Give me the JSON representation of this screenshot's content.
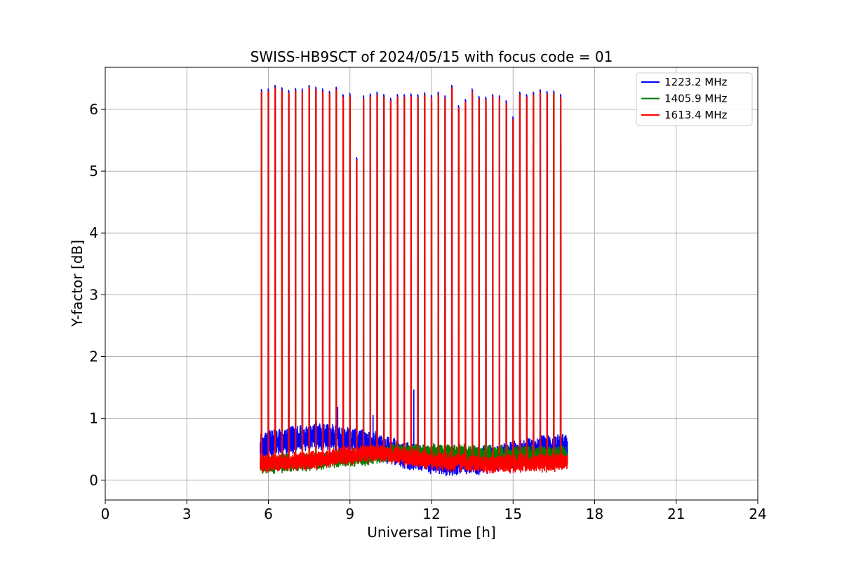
{
  "chart_data": {
    "type": "line",
    "title": "SWISS-HB9SCT of 2024/05/15 with focus code = 01",
    "xlabel": "Universal Time [h]",
    "ylabel": "Y-factor [dB]",
    "xlim": [
      0,
      24
    ],
    "ylim": [
      -0.32,
      6.68
    ],
    "xticks": [
      0,
      3,
      6,
      9,
      12,
      15,
      18,
      21,
      24
    ],
    "yticks": [
      0,
      1,
      2,
      3,
      4,
      5,
      6
    ],
    "grid": true,
    "legend_position": "top-right",
    "time_range": [
      5.7,
      17.0
    ],
    "calibration_peaks": [
      {
        "t": 5.75,
        "v": 6.28
      },
      {
        "t": 6.0,
        "v": 6.29
      },
      {
        "t": 6.25,
        "v": 6.35
      },
      {
        "t": 6.5,
        "v": 6.31
      },
      {
        "t": 6.75,
        "v": 6.27
      },
      {
        "t": 7.0,
        "v": 6.3
      },
      {
        "t": 7.25,
        "v": 6.29
      },
      {
        "t": 7.5,
        "v": 6.35
      },
      {
        "t": 7.75,
        "v": 6.32
      },
      {
        "t": 8.0,
        "v": 6.29
      },
      {
        "t": 8.25,
        "v": 6.25
      },
      {
        "t": 8.5,
        "v": 6.32
      },
      {
        "t": 8.75,
        "v": 6.2
      },
      {
        "t": 9.0,
        "v": 6.22
      },
      {
        "t": 9.25,
        "v": 5.18
      },
      {
        "t": 9.5,
        "v": 6.18
      },
      {
        "t": 9.75,
        "v": 6.21
      },
      {
        "t": 10.0,
        "v": 6.24
      },
      {
        "t": 10.25,
        "v": 6.2
      },
      {
        "t": 10.5,
        "v": 6.14
      },
      {
        "t": 10.75,
        "v": 6.2
      },
      {
        "t": 11.0,
        "v": 6.2
      },
      {
        "t": 11.25,
        "v": 6.21
      },
      {
        "t": 11.5,
        "v": 6.2
      },
      {
        "t": 11.75,
        "v": 6.23
      },
      {
        "t": 12.0,
        "v": 6.19
      },
      {
        "t": 12.25,
        "v": 6.24
      },
      {
        "t": 12.5,
        "v": 6.18
      },
      {
        "t": 12.75,
        "v": 6.35
      },
      {
        "t": 13.0,
        "v": 6.02
      },
      {
        "t": 13.25,
        "v": 6.12
      },
      {
        "t": 13.5,
        "v": 6.29
      },
      {
        "t": 13.75,
        "v": 6.17
      },
      {
        "t": 14.0,
        "v": 6.16
      },
      {
        "t": 14.25,
        "v": 6.2
      },
      {
        "t": 14.5,
        "v": 6.18
      },
      {
        "t": 14.75,
        "v": 6.1
      },
      {
        "t": 15.0,
        "v": 5.84
      },
      {
        "t": 15.25,
        "v": 6.24
      },
      {
        "t": 15.5,
        "v": 6.2
      },
      {
        "t": 15.75,
        "v": 6.24
      },
      {
        "t": 16.0,
        "v": 6.28
      },
      {
        "t": 16.25,
        "v": 6.25
      },
      {
        "t": 16.5,
        "v": 6.26
      },
      {
        "t": 16.75,
        "v": 6.2
      }
    ],
    "series": [
      {
        "name": "1223.2 MHz",
        "color": "#0000ff",
        "baseline": [
          {
            "t": 5.7,
            "level": 0.55
          },
          {
            "t": 7.5,
            "level": 0.72
          },
          {
            "t": 8.6,
            "level": 0.68
          },
          {
            "t": 10.0,
            "level": 0.55
          },
          {
            "t": 11.0,
            "level": 0.4
          },
          {
            "t": 12.5,
            "level": 0.3
          },
          {
            "t": 14.0,
            "level": 0.32
          },
          {
            "t": 15.5,
            "level": 0.45
          },
          {
            "t": 17.0,
            "level": 0.55
          }
        ],
        "noise_amplitude": 0.2,
        "spikes": [
          {
            "t": 11.35,
            "v": 1.46
          },
          {
            "t": 8.55,
            "v": 1.18
          },
          {
            "t": 9.85,
            "v": 1.05
          },
          {
            "t": 13.5,
            "v": 0.97
          }
        ]
      },
      {
        "name": "1405.9 MHz",
        "color": "#008000",
        "baseline": [
          {
            "t": 5.7,
            "level": 0.25
          },
          {
            "t": 7.5,
            "level": 0.3
          },
          {
            "t": 9.5,
            "level": 0.38
          },
          {
            "t": 10.5,
            "level": 0.45
          },
          {
            "t": 12.0,
            "level": 0.45
          },
          {
            "t": 14.0,
            "level": 0.42
          },
          {
            "t": 15.5,
            "level": 0.42
          },
          {
            "t": 17.0,
            "level": 0.4
          }
        ],
        "noise_amplitude": 0.12,
        "spikes": []
      },
      {
        "name": "1613.4 MHz",
        "color": "#ff0000",
        "baseline": [
          {
            "t": 5.7,
            "level": 0.27
          },
          {
            "t": 7.5,
            "level": 0.32
          },
          {
            "t": 9.0,
            "level": 0.4
          },
          {
            "t": 10.0,
            "level": 0.45
          },
          {
            "t": 12.0,
            "level": 0.32
          },
          {
            "t": 14.0,
            "level": 0.26
          },
          {
            "t": 16.0,
            "level": 0.28
          },
          {
            "t": 17.0,
            "level": 0.3
          }
        ],
        "noise_amplitude": 0.12,
        "spikes": []
      }
    ]
  }
}
